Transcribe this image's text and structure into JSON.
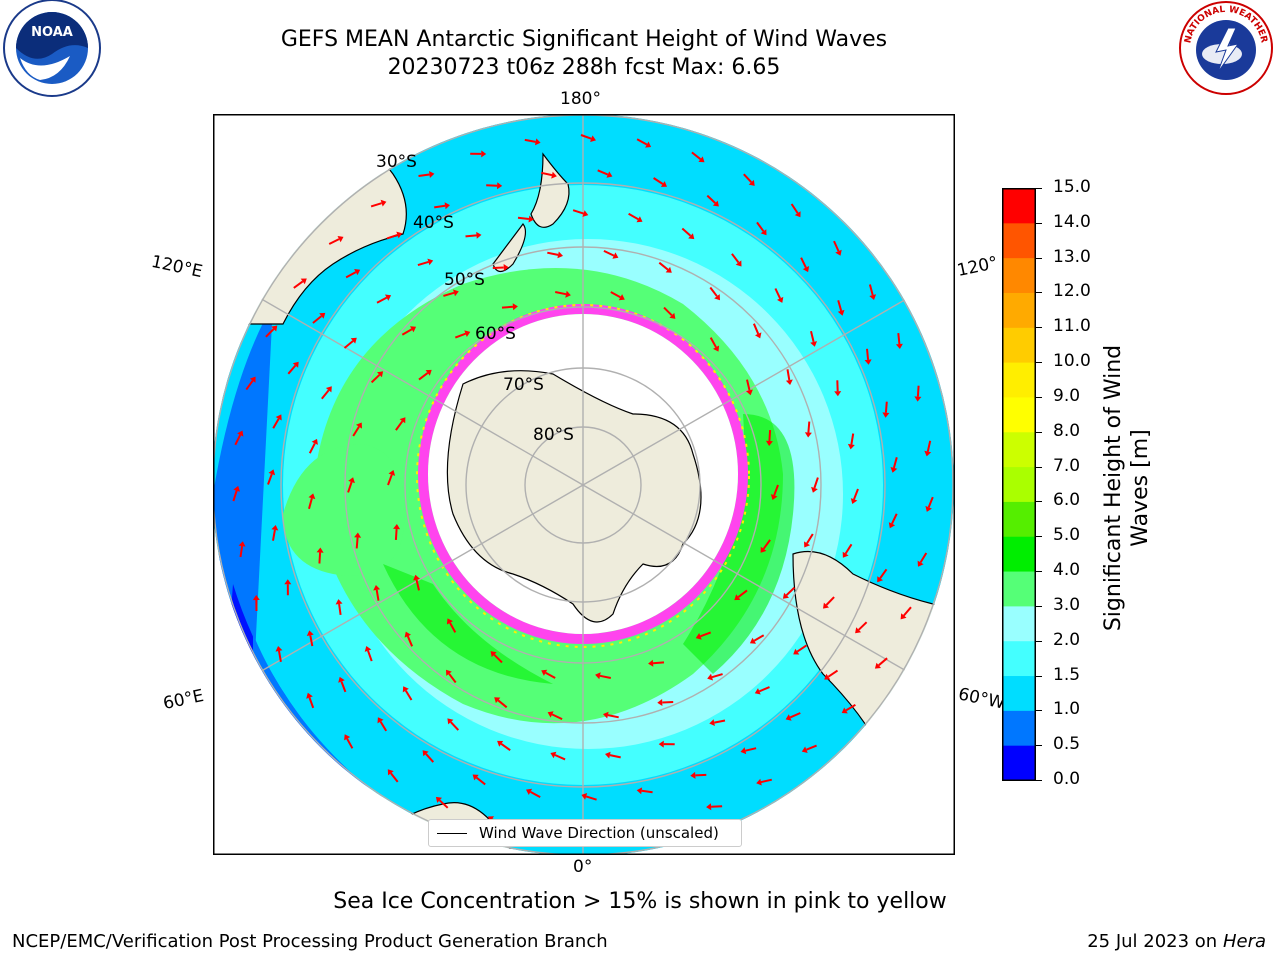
{
  "header": {
    "title_line1": "GEFS MEAN Antarctic Significant Height of Wind Waves",
    "title_line2": "20230723 t06z 288h fcst   Max: 6.65"
  },
  "logos": {
    "noaa_text": "NOAA",
    "nws_text": "NATIONAL WEATHER SERVICE"
  },
  "map": {
    "projection": "south-polar-stereographic",
    "lon_labels": {
      "top": "180°",
      "bottom": "0°",
      "left_upper": "120°E",
      "left_lower": "60°E",
      "right_upper": "120°",
      "right_lower": "60°W"
    },
    "lat_labels": [
      "30°S",
      "40°S",
      "50°S",
      "60°S",
      "70°S",
      "80°S"
    ],
    "legend": "Wind Wave Direction (unscaled)",
    "colors": {
      "ocean_far": "#0000ff",
      "land": "#eeecdc",
      "ice_edge": "#ff44ee",
      "arrow": "#ff0000"
    }
  },
  "colorbar": {
    "label_line1": "Significant Height of Wind",
    "label_line2": "Waves [m]",
    "ticks": [
      "15.0",
      "14.0",
      "13.0",
      "12.0",
      "11.0",
      "10.0",
      "9.0",
      "8.0",
      "7.0",
      "6.0",
      "5.0",
      "4.0",
      "3.0",
      "2.0",
      "1.5",
      "1.0",
      "0.5",
      "0.0"
    ],
    "colors": [
      "#0000ff",
      "#0077ff",
      "#00ddff",
      "#44ffff",
      "#99ffff",
      "#55ff77",
      "#00ee00",
      "#55ee00",
      "#aaff00",
      "#ccff00",
      "#ffff00",
      "#ffee00",
      "#ffcc00",
      "#ffaa00",
      "#ff8800",
      "#ff5500",
      "#ff0000"
    ]
  },
  "caption": "Sea Ice Concentration > 15% is shown in pink to yellow",
  "footer": {
    "left": "NCEP/EMC/Verification Post Processing Product Generation Branch",
    "right_prefix": "25 Jul 2023 on ",
    "right_host": "Hera"
  }
}
